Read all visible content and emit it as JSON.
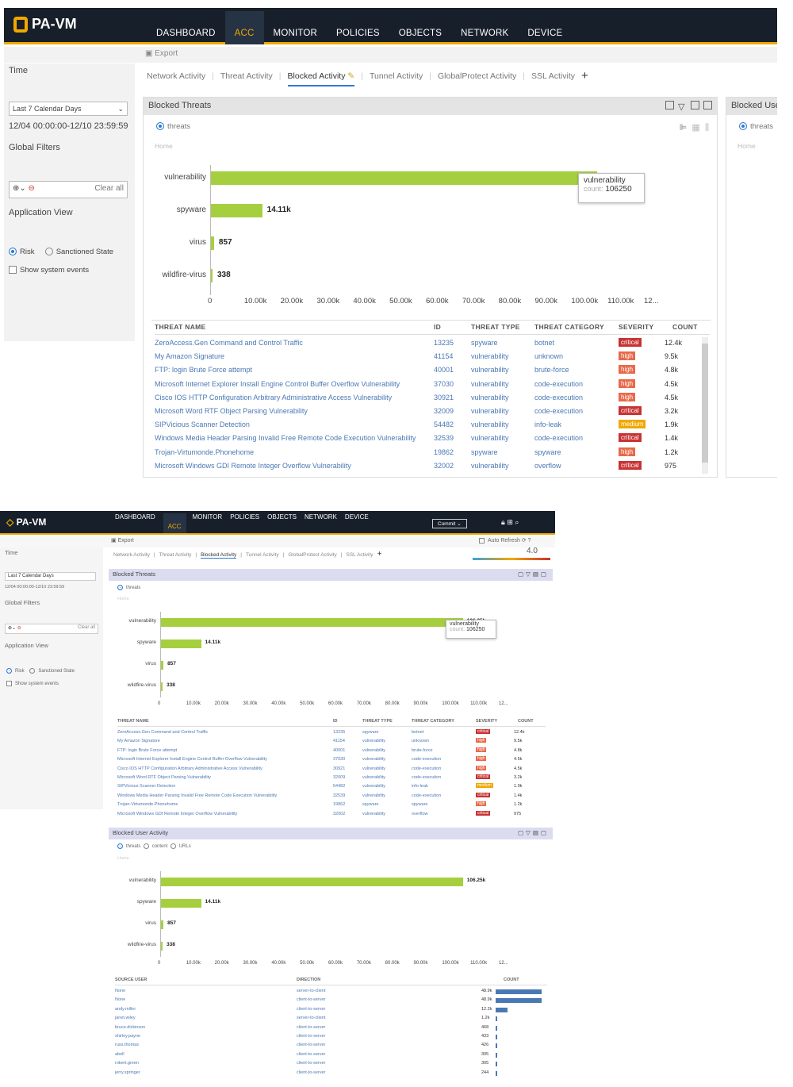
{
  "app": {
    "logo": "PA-VM"
  },
  "nav": [
    "DASHBOARD",
    "ACC",
    "MONITOR",
    "POLICIES",
    "OBJECTS",
    "NETWORK",
    "DEVICE"
  ],
  "toolbar": {
    "export": "Export",
    "commit": "Commit",
    "auto_refresh": "Auto Refresh",
    "risk_score": "4.0"
  },
  "sidebar": {
    "time_label": "Time",
    "time_select": "Last 7 Calendar Days",
    "time_range": "12/04 00:00:00-12/10 23:59:59",
    "global_filters": "Global Filters",
    "clear_all": "Clear all",
    "application_view": "Application View",
    "risk": "Risk",
    "sanctioned": "Sanctioned State",
    "show_system": "Show system events"
  },
  "tabs": [
    "Network Activity",
    "Threat Activity",
    "Blocked Activity",
    "Tunnel Activity",
    "GlobalProtect Activity",
    "SSL Activity"
  ],
  "blocked_threats": {
    "title": "Blocked Threats",
    "radio": "threats",
    "breadcrumb": "Home",
    "tooltip_name": "vulnerability",
    "tooltip_count_label": "count:",
    "tooltip_count": "106250",
    "table_headers": [
      "THREAT NAME",
      "ID",
      "THREAT TYPE",
      "THREAT CATEGORY",
      "SEVERITY",
      "COUNT"
    ],
    "rows": [
      {
        "name": "ZeroAccess.Gen Command and Control Traffic",
        "id": "13235",
        "type": "spyware",
        "category": "botnet",
        "severity": "critical",
        "count": "12.4k"
      },
      {
        "name": "My Amazon Signature",
        "id": "41154",
        "type": "vulnerability",
        "category": "unknown",
        "severity": "high",
        "count": "9.5k"
      },
      {
        "name": "FTP: login Brute Force attempt",
        "id": "40001",
        "type": "vulnerability",
        "category": "brute-force",
        "severity": "high",
        "count": "4.8k"
      },
      {
        "name": "Microsoft Internet Explorer Install Engine Control Buffer Overflow Vulnerability",
        "id": "37030",
        "type": "vulnerability",
        "category": "code-execution",
        "severity": "high",
        "count": "4.5k"
      },
      {
        "name": "Cisco IOS HTTP Configuration Arbitrary Administrative Access Vulnerability",
        "id": "30921",
        "type": "vulnerability",
        "category": "code-execution",
        "severity": "high",
        "count": "4.5k"
      },
      {
        "name": "Microsoft Word RTF Object Parsing Vulnerability",
        "id": "32009",
        "type": "vulnerability",
        "category": "code-execution",
        "severity": "critical",
        "count": "3.2k"
      },
      {
        "name": "SIPVicious Scanner Detection",
        "id": "54482",
        "type": "vulnerability",
        "category": "info-leak",
        "severity": "medium",
        "count": "1.9k"
      },
      {
        "name": "Windows Media Header Parsing Invalid Free Remote Code Execution Vulnerability",
        "id": "32539",
        "type": "vulnerability",
        "category": "code-execution",
        "severity": "critical",
        "count": "1.4k"
      },
      {
        "name": "Trojan-Virtumonde.Phonehome",
        "id": "19862",
        "type": "spyware",
        "category": "spyware",
        "severity": "high",
        "count": "1.2k"
      },
      {
        "name": "Microsoft Windows GDI Remote Integer Overflow Vulnerability",
        "id": "32002",
        "type": "vulnerability",
        "category": "overflow",
        "severity": "critical",
        "count": "975"
      }
    ]
  },
  "blocked_user_activity": {
    "title": "Blocked User Activity",
    "title_partial": "Blocked Use",
    "radios": [
      "threats",
      "content",
      "URLs"
    ],
    "breadcrumb": "Home",
    "table_headers": [
      "SOURCE USER",
      "DIRECTION",
      "COUNT"
    ],
    "rows": [
      {
        "user": "None",
        "direction": "server-to-client",
        "count": "48.9k",
        "level": 1.0
      },
      {
        "user": "None",
        "direction": "client-to-server",
        "count": "48.9k",
        "level": 1.0
      },
      {
        "user": "andy.miller",
        "direction": "client-to-server",
        "count": "12.2k",
        "level": 0.25
      },
      {
        "user": "janet.wiley",
        "direction": "server-to-client",
        "count": "1.2k",
        "level": 0.03
      },
      {
        "user": "bruce.dickinson",
        "direction": "client-to-server",
        "count": "468",
        "level": 0.01
      },
      {
        "user": "shirley.payne",
        "direction": "client-to-server",
        "count": "433",
        "level": 0.01
      },
      {
        "user": "russ.thomas",
        "direction": "client-to-server",
        "count": "426",
        "level": 0.01
      },
      {
        "user": "abell",
        "direction": "client-to-server",
        "count": "305",
        "level": 0.01
      },
      {
        "user": "robert.green",
        "direction": "client-to-server",
        "count": "305",
        "level": 0.01
      },
      {
        "user": "jerry.springer",
        "direction": "client-to-server",
        "count": "244",
        "level": 0.01
      }
    ]
  },
  "chart_data": {
    "type": "bar",
    "orientation": "horizontal",
    "categories": [
      "vulnerability",
      "spyware",
      "virus",
      "wildfire-virus"
    ],
    "values": [
      106250,
      14110,
      857,
      338
    ],
    "labels": [
      "106.25k",
      "14.11k",
      "857",
      "338"
    ],
    "ticks": [
      "0",
      "10.00k",
      "20.00k",
      "30.00k",
      "40.00k",
      "50.00k",
      "60.00k",
      "70.00k",
      "80.00k",
      "90.00k",
      "100.00k",
      "110.00k",
      "12..."
    ],
    "xlim": [
      0,
      120000
    ]
  }
}
